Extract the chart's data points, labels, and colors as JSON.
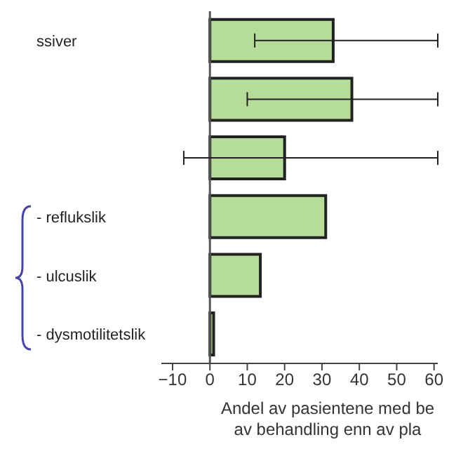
{
  "chart_data": {
    "type": "bar",
    "orientation": "horizontal",
    "xlabel": "Andel av pasientene med be\nav behandling enn av pla",
    "categories": [
      "ssiver",
      null,
      null,
      "- reflukslik",
      "- ulcuslik",
      "- dysmotilitetslik"
    ],
    "values": [
      33,
      38,
      20,
      31,
      13.5,
      1
    ],
    "errors": [
      [
        12,
        61
      ],
      [
        10,
        61
      ],
      [
        -7,
        61
      ],
      null,
      null,
      null
    ],
    "color": "#b5dc98",
    "xlim": [
      -13,
      61
    ],
    "xticks": [
      -10,
      0,
      10,
      20,
      30,
      40,
      50,
      60
    ],
    "ref_lines": [
      {
        "axis": "x",
        "value": 0,
        "color": "#555555"
      }
    ],
    "grid": false
  }
}
